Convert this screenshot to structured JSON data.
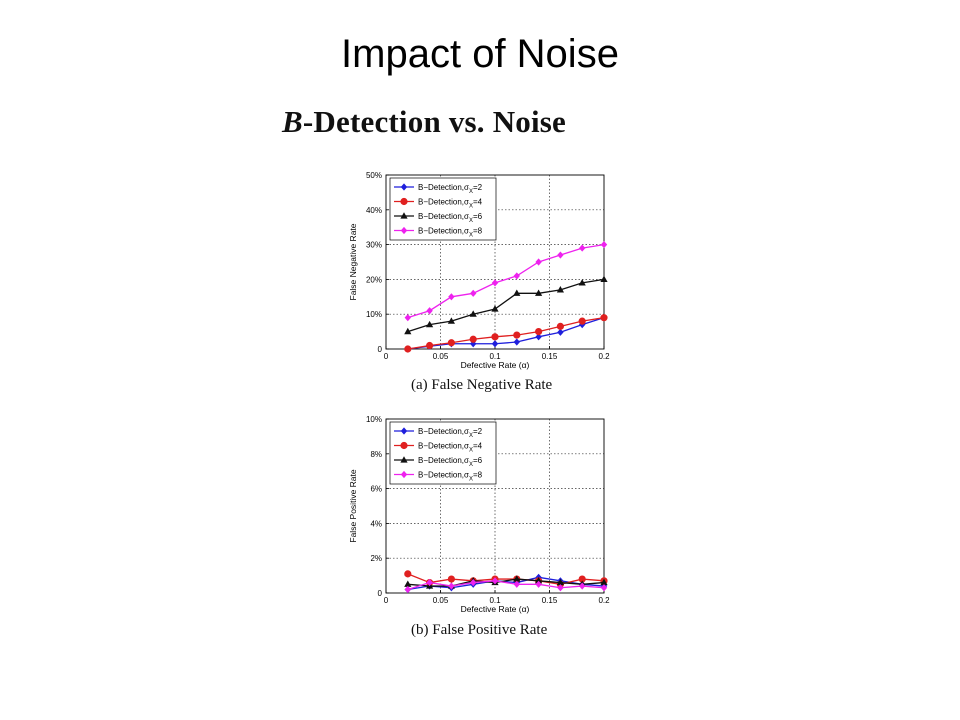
{
  "slide": {
    "title": "Impact of Noise",
    "subtitle_italic": "B",
    "subtitle_rest": "-Detection vs. Noise"
  },
  "chart_data": [
    {
      "id": "fnr",
      "type": "line",
      "caption": "(a) False Negative Rate",
      "xlabel": "Defective Rate (α)",
      "ylabel": "False Negative Rate",
      "xlim": [
        0,
        0.2
      ],
      "ylim": [
        0,
        0.5
      ],
      "xticks": [
        0,
        0.05,
        0.1,
        0.15,
        0.2
      ],
      "xtick_labels": [
        "0",
        "0.05",
        "0.1",
        "0.15",
        "0.2"
      ],
      "yticks": [
        0,
        0.1,
        0.2,
        0.3,
        0.4,
        0.5
      ],
      "ytick_labels": [
        "0",
        "10%",
        "20%",
        "30%",
        "40%",
        "50%"
      ],
      "grid": true,
      "legend_position": "top-left",
      "x": [
        0.02,
        0.04,
        0.06,
        0.08,
        0.1,
        0.12,
        0.14,
        0.16,
        0.18,
        0.2
      ],
      "series": [
        {
          "legend_prefix": "B−Detection,σ",
          "legend_sub": "X",
          "legend_suffix": "=2",
          "color": "#1f1fdc",
          "marker": "diamond",
          "values": [
            0.0,
            0.008,
            0.015,
            0.015,
            0.015,
            0.02,
            0.035,
            0.048,
            0.07,
            0.09
          ]
        },
        {
          "legend_prefix": "B−Detection,σ",
          "legend_sub": "X",
          "legend_suffix": "=4",
          "color": "#e02020",
          "marker": "circle",
          "values": [
            0.0,
            0.01,
            0.018,
            0.028,
            0.035,
            0.04,
            0.05,
            0.065,
            0.08,
            0.09
          ]
        },
        {
          "legend_prefix": "B−Detection,σ",
          "legend_sub": "X",
          "legend_suffix": "=6",
          "color": "#111111",
          "marker": "triangle",
          "values": [
            0.05,
            0.07,
            0.08,
            0.1,
            0.115,
            0.16,
            0.16,
            0.17,
            0.19,
            0.2
          ]
        },
        {
          "legend_prefix": "B−Detection,σ",
          "legend_sub": "X",
          "legend_suffix": "=8",
          "color": "#ee22ee",
          "marker": "diamond",
          "values": [
            0.09,
            0.11,
            0.15,
            0.16,
            0.19,
            0.21,
            0.25,
            0.27,
            0.29,
            0.3
          ]
        }
      ]
    },
    {
      "id": "fpr",
      "type": "line",
      "caption": "(b) False Positive Rate",
      "xlabel": "Defective Rate (α)",
      "ylabel": "False Positive Rate",
      "xlim": [
        0,
        0.2
      ],
      "ylim": [
        0,
        0.1
      ],
      "xticks": [
        0,
        0.05,
        0.1,
        0.15,
        0.2
      ],
      "xtick_labels": [
        "0",
        "0.05",
        "0.1",
        "0.15",
        "0.2"
      ],
      "yticks": [
        0,
        0.02,
        0.04,
        0.06,
        0.08,
        0.1
      ],
      "ytick_labels": [
        "0",
        "2%",
        "4%",
        "6%",
        "8%",
        "10%"
      ],
      "grid": true,
      "legend_position": "top-left",
      "x": [
        0.02,
        0.04,
        0.06,
        0.08,
        0.1,
        0.12,
        0.14,
        0.16,
        0.18,
        0.2
      ],
      "series": [
        {
          "legend_prefix": "B−Detection,σ",
          "legend_sub": "X",
          "legend_suffix": "=2",
          "color": "#1f1fdc",
          "marker": "diamond",
          "values": [
            0.002,
            0.004,
            0.003,
            0.005,
            0.007,
            0.006,
            0.009,
            0.007,
            0.005,
            0.004
          ]
        },
        {
          "legend_prefix": "B−Detection,σ",
          "legend_sub": "X",
          "legend_suffix": "=4",
          "color": "#e02020",
          "marker": "circle",
          "values": [
            0.011,
            0.006,
            0.008,
            0.007,
            0.008,
            0.008,
            0.007,
            0.005,
            0.008,
            0.007
          ]
        },
        {
          "legend_prefix": "B−Detection,σ",
          "legend_sub": "X",
          "legend_suffix": "=6",
          "color": "#111111",
          "marker": "triangle",
          "values": [
            0.005,
            0.004,
            0.004,
            0.007,
            0.006,
            0.008,
            0.007,
            0.006,
            0.005,
            0.006
          ]
        },
        {
          "legend_prefix": "B−Detection,σ",
          "legend_sub": "X",
          "legend_suffix": "=8",
          "color": "#ee22ee",
          "marker": "diamond",
          "values": [
            0.002,
            0.006,
            0.004,
            0.006,
            0.007,
            0.005,
            0.005,
            0.003,
            0.004,
            0.003
          ]
        }
      ]
    }
  ]
}
